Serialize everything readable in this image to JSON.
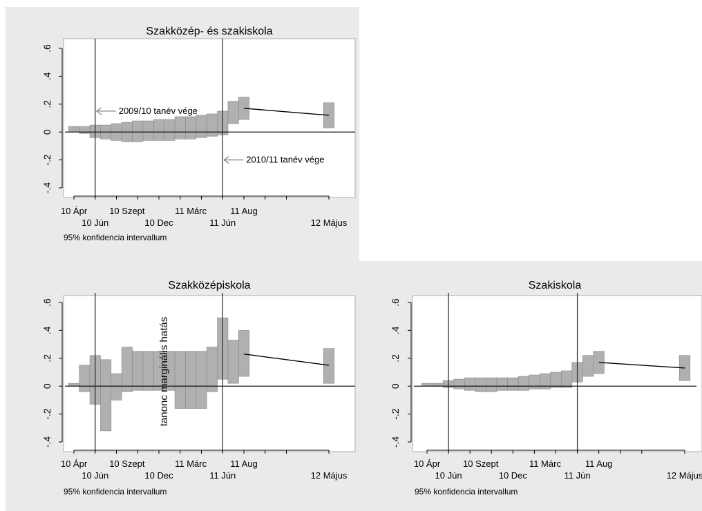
{
  "figure": {
    "y_axis_title": "tanonc marginális hatás",
    "colors": {
      "panel_background": "#eaeaea",
      "plot_background": "#ffffff",
      "ci_bar_fill": "#b0b0b0",
      "ci_bar_stroke": "#888888",
      "line": "#000000",
      "arrow": "#808080"
    }
  },
  "chart_data": [
    {
      "type": "bar",
      "title": "Szakközép- és szakiskola",
      "note": "95% konfidencia intervallum",
      "ylim": [
        -0.4,
        0.6
      ],
      "y_ticks": [
        -0.4,
        -0.2,
        0,
        0.2,
        0.4,
        0.6
      ],
      "y_tick_labels": [
        "-.4",
        "-.2",
        "0",
        ".2",
        ".4",
        ".6"
      ],
      "x_range": [
        0,
        25
      ],
      "x_tick_positions": [
        0,
        2,
        4,
        6,
        8,
        10,
        12,
        14,
        16,
        18,
        20,
        24
      ],
      "x_tick_labels_top": [
        {
          "x": 0,
          "text": "10 Ápr"
        },
        {
          "x": 5,
          "text": "10 Szept"
        },
        {
          "x": 11,
          "text": "11 Márc"
        },
        {
          "x": 16,
          "text": "11 Aug"
        }
      ],
      "x_tick_labels_bottom": [
        {
          "x": 2,
          "text": "10 Jún"
        },
        {
          "x": 8,
          "text": "10 Dec"
        },
        {
          "x": 14,
          "text": "11 Jún"
        },
        {
          "x": 24,
          "text": "12 Május"
        }
      ],
      "vlines": [
        2,
        14
      ],
      "series": [
        {
          "x": [
            0,
            1,
            2,
            3,
            4,
            5,
            6,
            7,
            8,
            9,
            10,
            11,
            12,
            13,
            14,
            15,
            16
          ],
          "lower": [
            0.0,
            -0.01,
            -0.04,
            -0.05,
            -0.06,
            -0.07,
            -0.07,
            -0.06,
            -0.06,
            -0.06,
            -0.05,
            -0.05,
            -0.04,
            -0.03,
            -0.02,
            0.06,
            0.09
          ],
          "upper": [
            0.04,
            0.04,
            0.05,
            0.05,
            0.06,
            0.07,
            0.08,
            0.08,
            0.09,
            0.09,
            0.11,
            0.11,
            0.12,
            0.13,
            0.15,
            0.22,
            0.25
          ],
          "point": [
            0.02,
            0.015,
            0.005,
            0.0,
            0.0,
            0.0,
            0.005,
            0.01,
            0.015,
            0.015,
            0.03,
            0.03,
            0.04,
            0.05,
            0.065,
            0.14,
            0.17
          ]
        },
        {
          "x": [
            24
          ],
          "lower": [
            0.03
          ],
          "upper": [
            0.21
          ],
          "point": [
            0.12
          ]
        }
      ],
      "line_points": [
        [
          16,
          0.17
        ],
        [
          24,
          0.12
        ]
      ],
      "annotations": [
        {
          "text": "2009/10 tanév vége",
          "x": 2,
          "y": 0.15,
          "text_x": 4.6,
          "text_y": 0.18
        },
        {
          "text": "2010/11 tanév vége",
          "x": 14,
          "y": -0.2,
          "text_x": 16.6,
          "text_y": -0.16
        }
      ]
    },
    {
      "type": "bar",
      "title": "Szakközépiskola",
      "note": "95% konfidencia intervallum",
      "ylim": [
        -0.4,
        0.6
      ],
      "y_ticks": [
        -0.4,
        -0.2,
        0,
        0.2,
        0.4,
        0.6
      ],
      "y_tick_labels": [
        "-.4",
        "-.2",
        "0",
        ".2",
        ".4",
        ".6"
      ],
      "x_range": [
        0,
        25
      ],
      "x_tick_positions": [
        0,
        2,
        4,
        6,
        8,
        10,
        12,
        14,
        16,
        18,
        20,
        24
      ],
      "x_tick_labels_top": [
        {
          "x": 0,
          "text": "10 Ápr"
        },
        {
          "x": 5,
          "text": "10 Szept"
        },
        {
          "x": 11,
          "text": "11 Márc"
        },
        {
          "x": 16,
          "text": "11 Aug"
        }
      ],
      "x_tick_labels_bottom": [
        {
          "x": 2,
          "text": "10 Jún"
        },
        {
          "x": 8,
          "text": "10 Dec"
        },
        {
          "x": 14,
          "text": "11 Jún"
        },
        {
          "x": 24,
          "text": "12 Május"
        }
      ],
      "vlines": [
        2,
        14
      ],
      "series": [
        {
          "x": [
            0,
            1,
            2,
            3,
            4,
            5,
            6,
            7,
            8,
            9,
            10,
            11,
            12,
            13,
            14,
            15,
            16
          ],
          "lower": [
            0.0,
            -0.04,
            -0.13,
            -0.32,
            -0.1,
            -0.04,
            -0.03,
            -0.03,
            -0.03,
            -0.03,
            -0.16,
            -0.16,
            -0.16,
            -0.04,
            0.05,
            0.02,
            0.07
          ],
          "upper": [
            0.02,
            0.15,
            0.22,
            0.19,
            0.09,
            0.28,
            0.25,
            0.25,
            0.25,
            0.25,
            0.25,
            0.25,
            0.25,
            0.28,
            0.49,
            0.33,
            0.4
          ],
          "point": [
            0.01,
            0.05,
            0.05,
            -0.07,
            0.0,
            0.12,
            0.11,
            0.11,
            0.11,
            0.11,
            0.05,
            0.05,
            0.05,
            0.12,
            0.27,
            0.18,
            0.23
          ]
        },
        {
          "x": [
            24
          ],
          "lower": [
            0.02
          ],
          "upper": [
            0.27
          ],
          "point": [
            0.15
          ]
        }
      ],
      "line_points": [
        [
          16,
          0.23
        ],
        [
          24,
          0.15
        ]
      ],
      "annotations": []
    },
    {
      "type": "bar",
      "title": "Szakiskola",
      "note": "95% konfidencia intervallum",
      "ylim": [
        -0.4,
        0.6
      ],
      "y_ticks": [
        -0.4,
        -0.2,
        0,
        0.2,
        0.4,
        0.6
      ],
      "y_tick_labels": [
        "-.4",
        "-.2",
        "0",
        ".2",
        ".4",
        ".6"
      ],
      "x_range": [
        0,
        25
      ],
      "x_tick_positions": [
        0,
        2,
        4,
        6,
        8,
        10,
        12,
        14,
        16,
        18,
        20,
        24
      ],
      "x_tick_labels_top": [
        {
          "x": 0,
          "text": "10 Ápr"
        },
        {
          "x": 5,
          "text": "10 Szept"
        },
        {
          "x": 11,
          "text": "11 Márc"
        },
        {
          "x": 16,
          "text": "11 Aug"
        }
      ],
      "x_tick_labels_bottom": [
        {
          "x": 2,
          "text": "10 Jún"
        },
        {
          "x": 8,
          "text": "10 Dec"
        },
        {
          "x": 14,
          "text": "11 Jún"
        },
        {
          "x": 24,
          "text": "12 Május"
        }
      ],
      "vlines": [
        2,
        14
      ],
      "series": [
        {
          "x": [
            0,
            1,
            2,
            3,
            4,
            5,
            6,
            7,
            8,
            9,
            10,
            11,
            12,
            13,
            14,
            15,
            16
          ],
          "lower": [
            0.0,
            0.0,
            -0.01,
            -0.02,
            -0.03,
            -0.04,
            -0.04,
            -0.03,
            -0.03,
            -0.03,
            -0.02,
            -0.02,
            -0.01,
            -0.01,
            0.03,
            0.07,
            0.09
          ],
          "upper": [
            0.02,
            0.02,
            0.04,
            0.05,
            0.06,
            0.06,
            0.06,
            0.06,
            0.06,
            0.07,
            0.08,
            0.09,
            0.1,
            0.11,
            0.17,
            0.22,
            0.25
          ],
          "point": [
            0.01,
            0.01,
            0.015,
            0.015,
            0.015,
            0.01,
            0.01,
            0.015,
            0.015,
            0.02,
            0.03,
            0.035,
            0.045,
            0.05,
            0.1,
            0.145,
            0.17
          ]
        },
        {
          "x": [
            24
          ],
          "lower": [
            0.04
          ],
          "upper": [
            0.22
          ],
          "point": [
            0.13
          ]
        }
      ],
      "line_points": [
        [
          16,
          0.17
        ],
        [
          24,
          0.13
        ]
      ],
      "annotations": []
    }
  ]
}
